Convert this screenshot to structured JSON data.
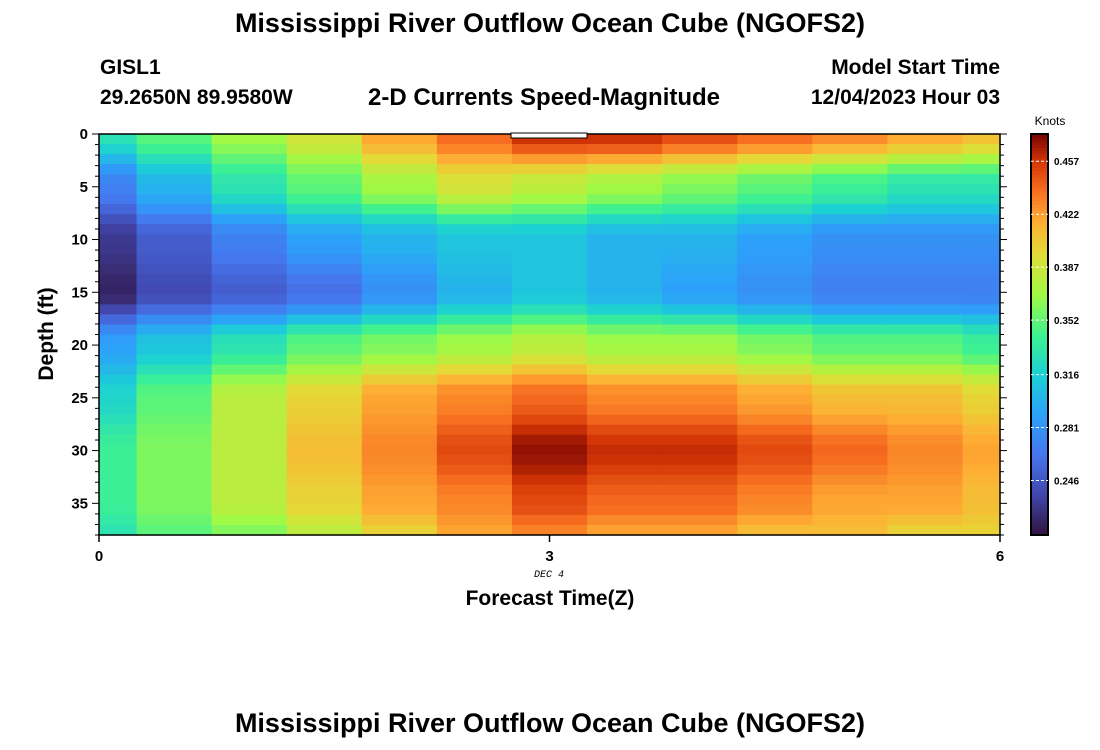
{
  "header": {
    "title": "Mississippi River Outflow Ocean Cube (NGOFS2)",
    "station_id": "GISL1",
    "station_coords": "29.2650N  89.9580W",
    "subtitle": "2-D Currents Speed-Magnitude",
    "model_start_label": "Model Start Time",
    "model_start_value": "12/04/2023 Hour 03"
  },
  "footer": {
    "title": "Mississippi River Outflow Ocean Cube (NGOFS2)"
  },
  "chart_data": {
    "type": "heatmap",
    "title": "2-D Currents Speed-Magnitude",
    "xlabel": "Forecast Time(Z)",
    "ylabel": "Depth (ft)",
    "x_date_label": "DEC 4",
    "xlim": [
      0,
      6
    ],
    "ylim": [
      38,
      0
    ],
    "x_ticks": [
      0,
      3,
      6
    ],
    "y_ticks": [
      0,
      5,
      10,
      15,
      20,
      25,
      30,
      35
    ],
    "colorbar": {
      "label": "Knots",
      "range": [
        0.21,
        0.475
      ],
      "ticks": [
        0.457,
        0.422,
        0.387,
        0.352,
        0.316,
        0.281,
        0.246
      ],
      "tick_labels": [
        "0.457",
        "0.422",
        "0.387",
        "0.352",
        "0.316",
        "0.281",
        "0.246"
      ]
    },
    "time_steps": [
      0,
      0.5,
      1,
      1.5,
      2,
      2.5,
      3,
      3.5,
      4,
      4.5,
      5,
      5.5,
      6
    ],
    "depth_nodes_ft": [
      0,
      5,
      10,
      15,
      20,
      25,
      30,
      35,
      38
    ],
    "speed_knots": [
      [
        0.33,
        0.35,
        0.37,
        0.39,
        0.42,
        0.44,
        0.46,
        0.46,
        0.45,
        0.44,
        0.43,
        0.42,
        0.41
      ],
      [
        0.27,
        0.3,
        0.33,
        0.35,
        0.37,
        0.39,
        0.38,
        0.37,
        0.36,
        0.35,
        0.34,
        0.33,
        0.33
      ],
      [
        0.23,
        0.25,
        0.27,
        0.29,
        0.3,
        0.31,
        0.31,
        0.3,
        0.3,
        0.29,
        0.28,
        0.28,
        0.28
      ],
      [
        0.22,
        0.24,
        0.25,
        0.26,
        0.28,
        0.3,
        0.31,
        0.3,
        0.29,
        0.28,
        0.27,
        0.27,
        0.27
      ],
      [
        0.29,
        0.31,
        0.33,
        0.35,
        0.36,
        0.37,
        0.38,
        0.37,
        0.37,
        0.36,
        0.35,
        0.35,
        0.34
      ],
      [
        0.32,
        0.35,
        0.38,
        0.4,
        0.42,
        0.43,
        0.44,
        0.43,
        0.43,
        0.42,
        0.41,
        0.41,
        0.4
      ],
      [
        0.34,
        0.36,
        0.38,
        0.41,
        0.43,
        0.45,
        0.47,
        0.46,
        0.46,
        0.45,
        0.44,
        0.43,
        0.42
      ],
      [
        0.34,
        0.36,
        0.38,
        0.4,
        0.42,
        0.43,
        0.45,
        0.44,
        0.44,
        0.43,
        0.42,
        0.42,
        0.41
      ],
      [
        0.33,
        0.35,
        0.36,
        0.38,
        0.4,
        0.42,
        0.43,
        0.42,
        0.42,
        0.41,
        0.41,
        0.4,
        0.4
      ]
    ]
  }
}
